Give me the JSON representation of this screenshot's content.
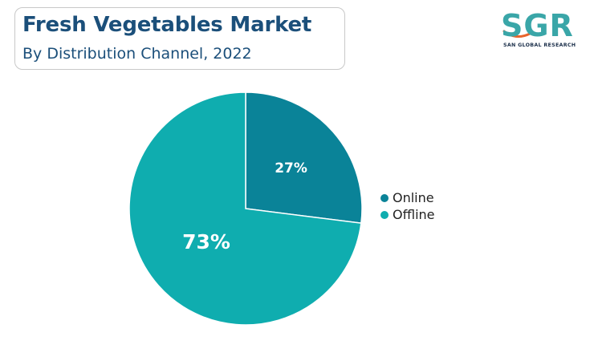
{
  "header": {
    "title": "Fresh Vegetables Market",
    "subtitle": "By Distribution Channel, 2022"
  },
  "logo": {
    "text": "SGR",
    "subtext": "SAN GLOBAL RESEARCH",
    "color": "#3aa6a8",
    "accent": "#e8642c"
  },
  "chart_data": {
    "type": "pie",
    "title": "Fresh Vegetables Market",
    "subtitle": "By Distribution Channel, 2022",
    "legend_position": "right",
    "slices": [
      {
        "name": "Online",
        "value": 27,
        "label": "27%",
        "color": "#0a8398"
      },
      {
        "name": "Offline",
        "value": 73,
        "label": "73%",
        "color": "#0fadaf"
      }
    ]
  }
}
